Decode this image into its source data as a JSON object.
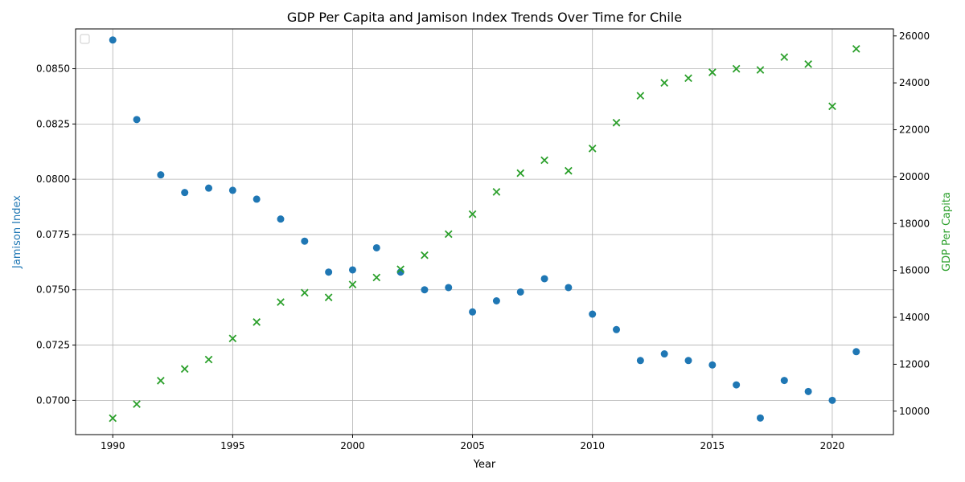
{
  "chart_data": {
    "type": "scatter",
    "title": "GDP Per Capita and Jamison Index Trends Over Time for Chile",
    "xlabel": "Year",
    "ylabel_left": "Jamison Index",
    "ylabel_right": "GDP Per Capita",
    "xlim": [
      1988.45,
      2022.55
    ],
    "ylim_left": [
      0.06845,
      0.0868
    ],
    "ylim_right": [
      9000,
      26300
    ],
    "x_ticks": [
      1990,
      1995,
      2000,
      2005,
      2010,
      2015,
      2020
    ],
    "y_ticks_left": [
      0.07,
      0.0725,
      0.075,
      0.0775,
      0.08,
      0.0825,
      0.085
    ],
    "y_ticks_right": [
      10000,
      12000,
      14000,
      16000,
      18000,
      20000,
      22000,
      24000,
      26000
    ],
    "grid": true,
    "legend": "top-left (empty)",
    "colors": {
      "left": "#1f77b4",
      "right": "#2ca02c"
    },
    "x": [
      1990,
      1991,
      1992,
      1993,
      1994,
      1995,
      1996,
      1997,
      1998,
      1999,
      2000,
      2001,
      2002,
      2003,
      2004,
      2005,
      2006,
      2007,
      2008,
      2009,
      2010,
      2011,
      2012,
      2013,
      2014,
      2015,
      2016,
      2017,
      2018,
      2019,
      2020,
      2021
    ],
    "series": [
      {
        "name": "Jamison Index",
        "axis": "left",
        "marker": "circle",
        "values": [
          0.0863,
          0.0827,
          0.0802,
          0.0794,
          0.0796,
          0.0795,
          0.0791,
          0.0782,
          0.0772,
          0.0758,
          0.0759,
          0.0769,
          0.0758,
          0.075,
          0.0751,
          0.074,
          0.0745,
          0.0749,
          0.0755,
          0.0751,
          0.0739,
          0.0732,
          0.0718,
          0.0721,
          0.0718,
          0.0716,
          0.0707,
          0.0692,
          0.0709,
          0.0704,
          0.07,
          0.0722
        ]
      },
      {
        "name": "GDP Per Capita",
        "axis": "right",
        "marker": "x",
        "values": [
          9700,
          10300,
          11300,
          11800,
          12200,
          13100,
          13800,
          14650,
          15050,
          14850,
          15400,
          15700,
          16050,
          16650,
          17550,
          18400,
          19350,
          20150,
          20700,
          20250,
          21200,
          22300,
          23450,
          24000,
          24200,
          24450,
          24600,
          24550,
          25100,
          24800,
          23000,
          25450
        ]
      }
    ]
  }
}
